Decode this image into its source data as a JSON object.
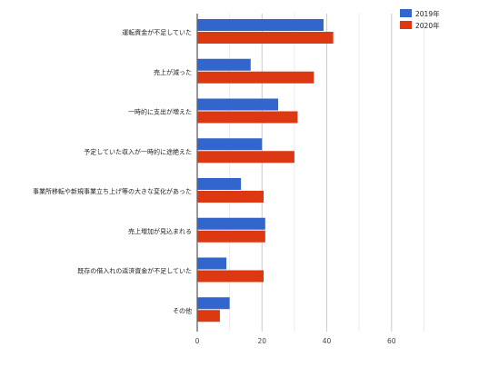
{
  "chart_data": {
    "type": "bar",
    "orientation": "horizontal",
    "categories": [
      "運転資金が不足していた",
      "売上が減った",
      "一時的に支出が増えた",
      "予定していた収入が一時的に途絶えた",
      "事業所移転や新規事業立ち上げ等の大きな変化があった",
      "売上増加が見込まれる",
      "既存の借入れの返済資金が不足していた",
      "その他"
    ],
    "series": [
      {
        "name": "2019年",
        "color": "#3366cc",
        "values": [
          39,
          16.5,
          25,
          20,
          13.5,
          21,
          9,
          10
        ]
      },
      {
        "name": "2020年",
        "color": "#dc3912",
        "values": [
          42,
          36,
          31,
          30,
          20.5,
          21,
          20.5,
          7
        ]
      }
    ],
    "xlim": [
      0,
      60
    ],
    "xticks": [
      0,
      20,
      40,
      60
    ],
    "grid": true,
    "legend_position": "top-right",
    "title": "",
    "xlabel": "",
    "ylabel": ""
  }
}
